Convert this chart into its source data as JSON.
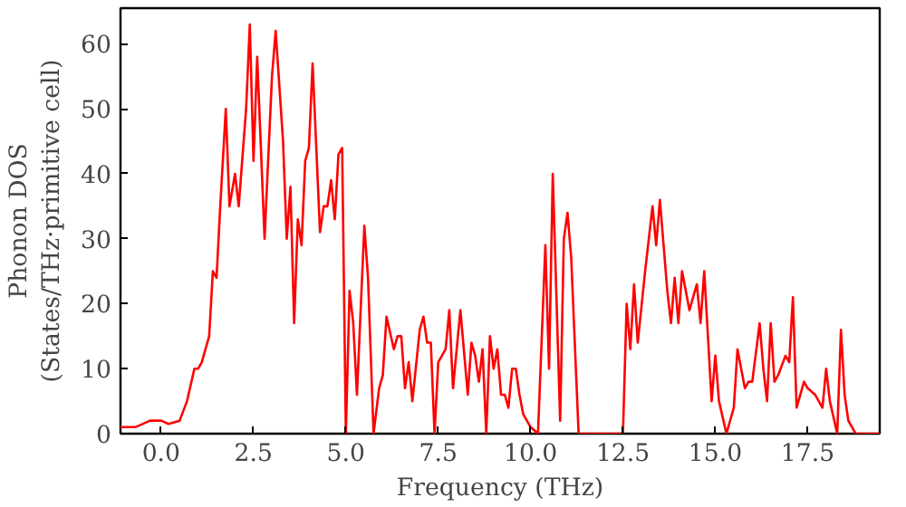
{
  "chart_data": {
    "type": "line",
    "xlabel": "Frequency (THz)",
    "ylabel": "Phonon DOS\n(States/THz·primitive cell)",
    "xlim": [
      -1.1,
      19.45
    ],
    "ylim": [
      0,
      65.5
    ],
    "xticks": [
      {
        "value": 0,
        "label": "0.0"
      },
      {
        "value": 2.5,
        "label": "2.5"
      },
      {
        "value": 5,
        "label": "5.0"
      },
      {
        "value": 7.5,
        "label": "7.5"
      },
      {
        "value": 10,
        "label": "10.0"
      },
      {
        "value": 12.5,
        "label": "12.5"
      },
      {
        "value": 15,
        "label": "15.0"
      },
      {
        "value": 17.5,
        "label": "17.5"
      }
    ],
    "yticks": [
      0,
      10,
      20,
      30,
      40,
      50,
      60
    ],
    "grid": false,
    "marker": "none",
    "line_style": "solid",
    "series": [
      {
        "color": "#ff0000",
        "x": [
          -1.1,
          -0.7,
          -0.3,
          0,
          0.2,
          0.5,
          0.7,
          0.9,
          1.0,
          1.1,
          1.3,
          1.4,
          1.5,
          1.6,
          1.75,
          1.85,
          2.0,
          2.1,
          2.3,
          2.4,
          2.5,
          2.6,
          2.8,
          3.0,
          3.1,
          3.3,
          3.4,
          3.5,
          3.6,
          3.7,
          3.8,
          3.9,
          4.0,
          4.1,
          4.3,
          4.4,
          4.5,
          4.6,
          4.7,
          4.8,
          4.9,
          5.0,
          5.1,
          5.2,
          5.3,
          5.5,
          5.6,
          5.75,
          5.9,
          6.0,
          6.1,
          6.3,
          6.4,
          6.5,
          6.6,
          6.7,
          6.8,
          7.0,
          7.1,
          7.2,
          7.3,
          7.4,
          7.5,
          7.7,
          7.8,
          7.9,
          8.0,
          8.1,
          8.3,
          8.4,
          8.5,
          8.6,
          8.7,
          8.8,
          8.9,
          9.0,
          9.1,
          9.2,
          9.3,
          9.4,
          9.5,
          9.6,
          9.7,
          9.8,
          10.0,
          10.2,
          10.4,
          10.5,
          10.6,
          10.8,
          10.9,
          11.0,
          11.1,
          11.3,
          12.5,
          12.6,
          12.7,
          12.8,
          12.9,
          13.1,
          13.3,
          13.4,
          13.5,
          13.7,
          13.8,
          13.9,
          14.0,
          14.1,
          14.3,
          14.5,
          14.6,
          14.7,
          14.9,
          15.0,
          15.1,
          15.3,
          15.5,
          15.6,
          15.8,
          15.9,
          16.0,
          16.2,
          16.3,
          16.4,
          16.5,
          16.6,
          16.7,
          16.9,
          17.0,
          17.1,
          17.2,
          17.4,
          17.5,
          17.7,
          17.9,
          18.0,
          18.1,
          18.3,
          18.4,
          18.5,
          18.6,
          18.8,
          19.45
        ],
        "values": [
          1,
          1,
          2,
          2,
          1.5,
          2,
          5,
          10,
          10,
          11,
          15,
          25,
          24,
          35,
          50,
          35,
          40,
          35,
          50,
          63,
          42,
          58,
          30,
          55,
          62,
          45,
          30,
          38,
          17,
          33,
          29,
          42,
          44,
          57,
          31,
          35,
          35,
          39,
          33,
          43,
          44,
          0,
          22,
          17,
          6,
          32,
          24,
          0,
          7,
          9,
          18,
          13,
          15,
          15,
          7,
          11,
          5,
          16,
          18,
          14,
          14,
          0,
          11,
          13,
          19,
          7,
          13,
          19,
          6,
          14,
          12,
          8,
          13,
          0,
          15,
          10,
          13,
          6,
          6,
          4,
          10,
          10,
          6,
          3,
          1,
          0,
          29,
          10,
          40,
          2,
          30,
          34,
          27,
          0,
          0,
          20,
          13,
          23,
          14,
          25,
          35,
          29,
          36,
          22,
          17,
          24,
          17,
          25,
          19,
          23,
          17,
          25,
          5,
          12,
          5,
          0,
          4,
          13,
          7,
          8,
          8,
          17,
          10,
          5,
          17,
          8,
          9,
          12,
          11,
          21,
          4,
          8,
          7,
          6,
          4,
          10,
          5,
          0,
          16,
          6,
          2,
          0,
          0
        ]
      }
    ]
  }
}
